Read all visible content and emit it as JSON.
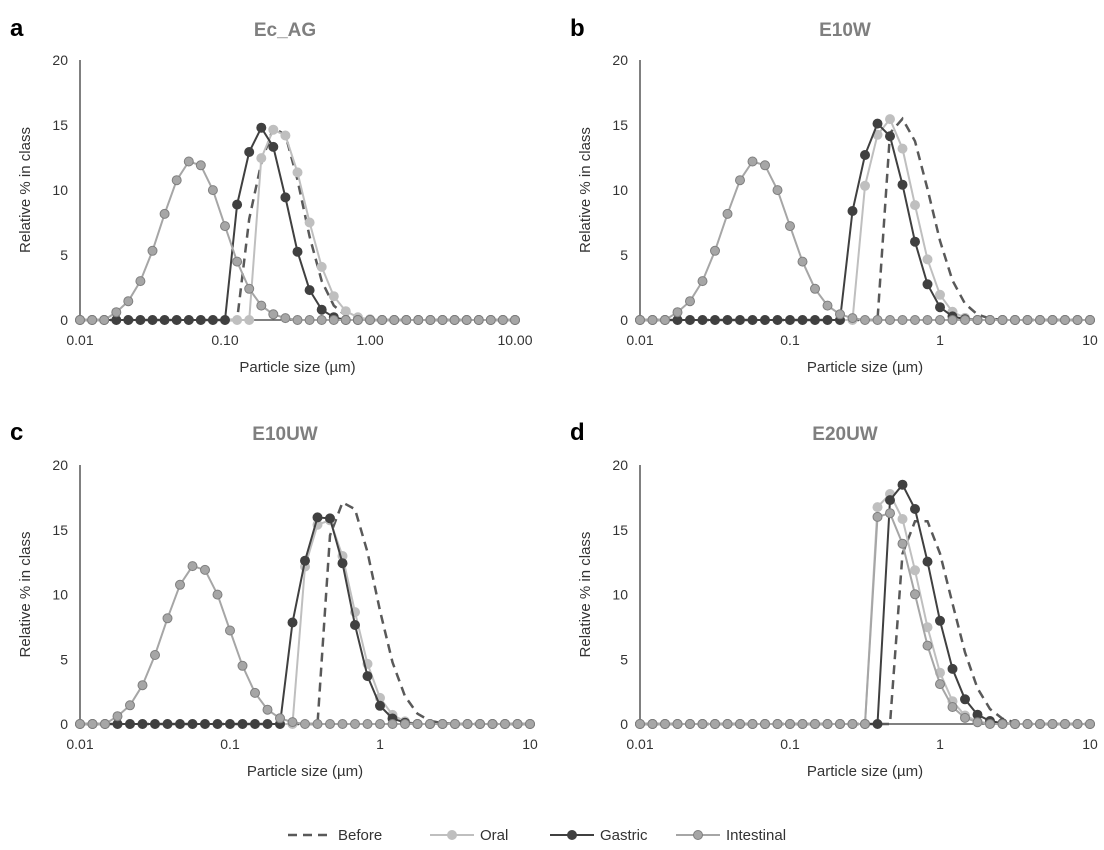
{
  "legend": {
    "items": [
      {
        "label": "Before",
        "color": "#595959",
        "style": "dashed",
        "marker": false
      },
      {
        "label": "Oral",
        "color": "#bfbfbf",
        "style": "solid",
        "marker": true
      },
      {
        "label": "Gastric",
        "color": "#404040",
        "style": "solid",
        "marker": true
      },
      {
        "label": "Intestinal",
        "color": "#a6a6a6",
        "style": "solid",
        "marker": true,
        "marker_outline": "#7f7f7f"
      }
    ]
  },
  "chart_data": [
    {
      "panel_letter": "a",
      "type": "line",
      "title": "Ec_AG",
      "xlabel": "Particle size (µm)",
      "ylabel": "Relative % in class",
      "x_scale": "log",
      "xlim": [
        0.01,
        10
      ],
      "x_ticks": [
        0.01,
        0.1,
        1,
        10
      ],
      "x_tick_labels": [
        "0.01",
        "0.10",
        "1.00",
        "10.00"
      ],
      "ylim": [
        0,
        20
      ],
      "y_ticks": [
        0,
        5,
        10,
        15,
        20
      ],
      "grid": false,
      "legend_position": "bottom",
      "series": [
        {
          "name": "Before",
          "peak_x": 0.23,
          "peak_y": 15.0,
          "sigma": 0.17,
          "zero_below": 0.13
        },
        {
          "name": "Oral",
          "peak_x": 0.23,
          "peak_y": 14.8,
          "sigma": 0.19,
          "zero_below": 0.15
        },
        {
          "name": "Gastric",
          "peak_x": 0.18,
          "peak_y": 14.8,
          "sigma": 0.17,
          "zero_below": 0.12
        },
        {
          "name": "Intestinal",
          "peak_x": 0.06,
          "peak_y": 12.3,
          "sigma": 0.215,
          "zero_below": 0.017
        }
      ]
    },
    {
      "panel_letter": "b",
      "type": "line",
      "title": "E10W",
      "xlabel": "Particle size (µm)",
      "ylabel": "Relative % in class",
      "x_scale": "log",
      "xlim": [
        0.01,
        10
      ],
      "x_ticks": [
        0.01,
        0.1,
        1,
        10
      ],
      "x_tick_labels": [
        "0.01",
        "0.1",
        "1",
        "10"
      ],
      "ylim": [
        0,
        20
      ],
      "y_ticks": [
        0,
        5,
        10,
        15,
        20
      ],
      "grid": false,
      "legend_position": "bottom",
      "series": [
        {
          "name": "Before",
          "peak_x": 0.55,
          "peak_y": 15.5,
          "sigma": 0.19,
          "zero_below": 0.4
        },
        {
          "name": "Oral",
          "peak_x": 0.45,
          "peak_y": 15.5,
          "sigma": 0.17,
          "zero_below": 0.27
        },
        {
          "name": "Gastric",
          "peak_x": 0.4,
          "peak_y": 15.2,
          "sigma": 0.17,
          "zero_below": 0.25
        },
        {
          "name": "Intestinal",
          "peak_x": 0.06,
          "peak_y": 12.3,
          "sigma": 0.215,
          "zero_below": 0.017
        }
      ]
    },
    {
      "panel_letter": "c",
      "type": "line",
      "title": "E10UW",
      "xlabel": "Particle size (µm)",
      "ylabel": "Relative % in class",
      "x_scale": "log",
      "xlim": [
        0.01,
        10
      ],
      "x_ticks": [
        0.01,
        0.1,
        1,
        10
      ],
      "x_tick_labels": [
        "0.01",
        "0.1",
        "1",
        "10"
      ],
      "ylim": [
        0,
        20
      ],
      "y_ticks": [
        0,
        5,
        10,
        15,
        20
      ],
      "grid": false,
      "legend_position": "bottom",
      "series": [
        {
          "name": "Before",
          "peak_x": 0.6,
          "peak_y": 17.3,
          "sigma": 0.19,
          "zero_below": 0.42
        },
        {
          "name": "Oral",
          "peak_x": 0.43,
          "peak_y": 16.0,
          "sigma": 0.18,
          "zero_below": 0.28
        },
        {
          "name": "Gastric",
          "peak_x": 0.42,
          "peak_y": 16.4,
          "sigma": 0.17,
          "zero_below": 0.25
        },
        {
          "name": "Intestinal",
          "peak_x": 0.06,
          "peak_y": 12.3,
          "sigma": 0.215,
          "zero_below": 0.017
        }
      ]
    },
    {
      "panel_letter": "d",
      "type": "line",
      "title": "E20UW",
      "xlabel": "Particle size (µm)",
      "ylabel": "Relative % in class",
      "x_scale": "log",
      "xlim": [
        0.01,
        10
      ],
      "x_ticks": [
        0.01,
        0.1,
        1,
        10
      ],
      "x_tick_labels": [
        "0.01",
        "0.1",
        "1",
        "10"
      ],
      "ylim": [
        0,
        20
      ],
      "y_ticks": [
        0,
        5,
        10,
        15,
        20
      ],
      "grid": false,
      "legend_position": "bottom",
      "series": [
        {
          "name": "Before",
          "peak_x": 0.75,
          "peak_y": 16.0,
          "sigma": 0.2,
          "zero_below": 0.48
        },
        {
          "name": "Oral",
          "peak_x": 0.45,
          "peak_y": 17.8,
          "sigma": 0.2,
          "zero_below": 0.36
        },
        {
          "name": "Gastric",
          "peak_x": 0.55,
          "peak_y": 18.5,
          "sigma": 0.2,
          "zero_below": 0.4
        },
        {
          "name": "Intestinal",
          "peak_x": 0.43,
          "peak_y": 16.5,
          "sigma": 0.2,
          "zero_below": 0.36
        }
      ]
    }
  ]
}
